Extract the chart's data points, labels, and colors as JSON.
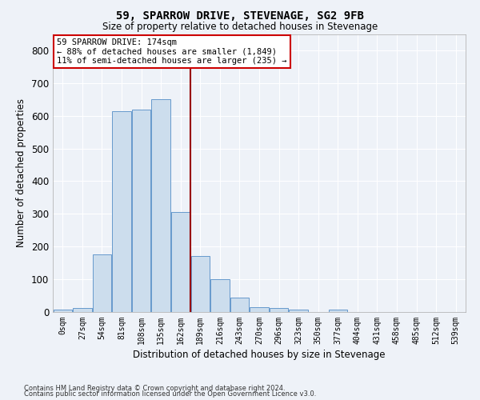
{
  "title": "59, SPARROW DRIVE, STEVENAGE, SG2 9FB",
  "subtitle": "Size of property relative to detached houses in Stevenage",
  "xlabel": "Distribution of detached houses by size in Stevenage",
  "ylabel": "Number of detached properties",
  "bar_color": "#ccdded",
  "bar_edge_color": "#6699cc",
  "background_color": "#eef2f8",
  "grid_color": "#ffffff",
  "vline_color": "#990000",
  "bin_labels": [
    "0sqm",
    "27sqm",
    "54sqm",
    "81sqm",
    "108sqm",
    "135sqm",
    "162sqm",
    "189sqm",
    "216sqm",
    "243sqm",
    "270sqm",
    "296sqm",
    "323sqm",
    "350sqm",
    "377sqm",
    "404sqm",
    "431sqm",
    "458sqm",
    "485sqm",
    "512sqm",
    "539sqm"
  ],
  "bar_heights": [
    7,
    12,
    175,
    615,
    620,
    650,
    305,
    172,
    100,
    45,
    15,
    12,
    7,
    0,
    7,
    0,
    0,
    0,
    0,
    0,
    0
  ],
  "ylim": [
    0,
    850
  ],
  "yticks": [
    0,
    100,
    200,
    300,
    400,
    500,
    600,
    700,
    800
  ],
  "vline_bin_index": 6.5,
  "annotation_text": "59 SPARROW DRIVE: 174sqm\n← 88% of detached houses are smaller (1,849)\n11% of semi-detached houses are larger (235) →",
  "annotation_box_color": "#ffffff",
  "annotation_box_edge": "#cc0000",
  "footer1": "Contains HM Land Registry data © Crown copyright and database right 2024.",
  "footer2": "Contains public sector information licensed under the Open Government Licence v3.0."
}
